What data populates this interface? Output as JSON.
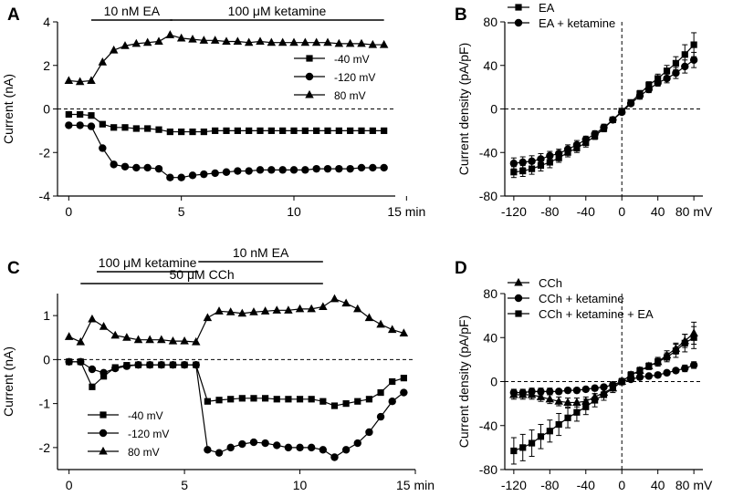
{
  "chart_data": [
    {
      "id": "A",
      "panel_label": "A",
      "type": "line",
      "xlabel": "min",
      "ylabel": "Current (nA)",
      "xlim": [
        -0.5,
        14.5
      ],
      "ylim": [
        -4,
        4
      ],
      "xticks": [
        0,
        5,
        10,
        15
      ],
      "yticks": [
        -4,
        -2,
        0,
        2,
        4
      ],
      "tick_labels_x": [
        "0",
        "5",
        "10",
        "15 min"
      ],
      "tick_labels_y": [
        "-4",
        "-2",
        "0",
        "2",
        "4"
      ],
      "zero_line": true,
      "bars": [
        {
          "label": "10 nM EA",
          "start": 1,
          "end": 4.6,
          "level": 1
        },
        {
          "label": "100 μM ketamine",
          "start": 4.5,
          "end": 14,
          "level": 1
        }
      ],
      "legend": {
        "placement": "right-middle"
      },
      "series": [
        {
          "name": "-40 mV",
          "marker": "square",
          "x": [
            0,
            0.5,
            1,
            1.5,
            2,
            2.5,
            3,
            3.5,
            4,
            4.5,
            5,
            5.5,
            6,
            6.5,
            7,
            7.5,
            8,
            8.5,
            9,
            9.5,
            10,
            10.5,
            11,
            11.5,
            12,
            12.5,
            13,
            13.5,
            14
          ],
          "values": [
            -0.25,
            -0.25,
            -0.3,
            -0.7,
            -0.85,
            -0.85,
            -0.9,
            -0.9,
            -0.95,
            -1.05,
            -1.05,
            -1.05,
            -1.05,
            -1.0,
            -1.0,
            -1.0,
            -1.0,
            -1.0,
            -1.0,
            -1.0,
            -1.0,
            -1.0,
            -1.0,
            -1.0,
            -1.0,
            -1.0,
            -1.0,
            -1.0,
            -1.0
          ]
        },
        {
          "name": "-120 mV",
          "marker": "circle",
          "x": [
            0,
            0.5,
            1,
            1.5,
            2,
            2.5,
            3,
            3.5,
            4,
            4.5,
            5,
            5.5,
            6,
            6.5,
            7,
            7.5,
            8,
            8.5,
            9,
            9.5,
            10,
            10.5,
            11,
            11.5,
            12,
            12.5,
            13,
            13.5,
            14
          ],
          "values": [
            -0.75,
            -0.75,
            -0.8,
            -1.8,
            -2.55,
            -2.65,
            -2.7,
            -2.7,
            -2.75,
            -3.15,
            -3.15,
            -3.05,
            -3.0,
            -2.95,
            -2.9,
            -2.85,
            -2.85,
            -2.8,
            -2.8,
            -2.8,
            -2.8,
            -2.8,
            -2.75,
            -2.75,
            -2.75,
            -2.75,
            -2.7,
            -2.7,
            -2.7
          ]
        },
        {
          "name": "80 mV",
          "marker": "triangle",
          "x": [
            0,
            0.5,
            1,
            1.5,
            2,
            2.5,
            3,
            3.5,
            4,
            4.5,
            5,
            5.5,
            6,
            6.5,
            7,
            7.5,
            8,
            8.5,
            9,
            9.5,
            10,
            10.5,
            11,
            11.5,
            12,
            12.5,
            13,
            13.5,
            14
          ],
          "values": [
            1.3,
            1.25,
            1.3,
            2.15,
            2.7,
            2.9,
            3.0,
            3.05,
            3.1,
            3.4,
            3.25,
            3.2,
            3.15,
            3.15,
            3.1,
            3.1,
            3.05,
            3.1,
            3.05,
            3.05,
            3.05,
            3.05,
            3.05,
            3.05,
            3.0,
            3.0,
            3.0,
            2.95,
            2.95
          ]
        }
      ]
    },
    {
      "id": "B",
      "panel_label": "B",
      "type": "scatter",
      "xlabel": "mV",
      "ylabel": "Current density (pA/pF)",
      "xlim": [
        -130,
        90
      ],
      "ylim": [
        -80,
        80
      ],
      "xticks": [
        -120,
        -80,
        -40,
        0,
        40,
        80
      ],
      "yticks": [
        -80,
        -40,
        0,
        40,
        80
      ],
      "tick_labels_x": [
        "-120",
        "-80",
        "-40",
        "0",
        "40",
        "80 mV"
      ],
      "tick_labels_y": [
        "-80",
        "-40",
        "0",
        "40",
        "80"
      ],
      "zero_line": true,
      "vertical_zero_line": true,
      "legend": {
        "placement": "top-left"
      },
      "series": [
        {
          "name": "EA",
          "marker": "square",
          "x": [
            -120,
            -110,
            -100,
            -90,
            -80,
            -70,
            -60,
            -50,
            -40,
            -30,
            -20,
            -10,
            0,
            10,
            20,
            30,
            40,
            50,
            60,
            70,
            80
          ],
          "values": [
            -58,
            -57,
            -55,
            -52,
            -49,
            -45,
            -40,
            -36,
            -31,
            -25,
            -18,
            -10,
            -2,
            6,
            14,
            22,
            28,
            35,
            42,
            50,
            59
          ],
          "errors": [
            5,
            5,
            5,
            5,
            5,
            4,
            4,
            4,
            4,
            3,
            3,
            2,
            2,
            2,
            3,
            3,
            4,
            5,
            6,
            9,
            11
          ]
        },
        {
          "name": "EA + ketamine",
          "marker": "circle",
          "x": [
            -120,
            -110,
            -100,
            -90,
            -80,
            -70,
            -60,
            -50,
            -40,
            -30,
            -20,
            -10,
            0,
            10,
            20,
            30,
            40,
            50,
            60,
            70,
            80
          ],
          "values": [
            -50,
            -49,
            -48,
            -46,
            -43,
            -41,
            -37,
            -33,
            -28,
            -23,
            -17,
            -10,
            -3,
            5,
            12,
            18,
            24,
            28,
            33,
            39,
            45
          ],
          "errors": [
            5,
            5,
            5,
            5,
            4,
            4,
            4,
            4,
            3,
            3,
            3,
            2,
            2,
            2,
            3,
            3,
            3,
            4,
            5,
            6,
            7
          ]
        }
      ]
    },
    {
      "id": "C",
      "panel_label": "C",
      "type": "line",
      "xlabel": "min",
      "ylabel": "Current (nA)",
      "xlim": [
        -0.5,
        15
      ],
      "ylim": [
        -2.5,
        1.5
      ],
      "xticks": [
        0,
        5,
        10,
        15
      ],
      "yticks": [
        -2,
        -1,
        0,
        1
      ],
      "tick_labels_x": [
        "0",
        "5",
        "10",
        "15 min"
      ],
      "tick_labels_y": [
        "-2",
        "-1",
        "0",
        "1"
      ],
      "zero_line": true,
      "bars": [
        {
          "label": "100 μM ketamine",
          "start": 1.2,
          "end": 5.6,
          "level": 2
        },
        {
          "label": "10 nM EA",
          "start": 5.6,
          "end": 11,
          "level": 1
        },
        {
          "label": "50 μM CCh",
          "start": 0.5,
          "end": 11,
          "level": 3
        }
      ],
      "legend": {
        "placement": "bottom-left"
      },
      "series": [
        {
          "name": "-40 mV",
          "marker": "square",
          "x": [
            0,
            0.5,
            1,
            1.5,
            2,
            2.5,
            3,
            3.5,
            4,
            4.5,
            5,
            5.5,
            6,
            6.5,
            7,
            7.5,
            8,
            8.5,
            9,
            9.5,
            10,
            10.5,
            11,
            11.5,
            12,
            12.5,
            13,
            13.5,
            14,
            14.5
          ],
          "values": [
            -0.05,
            -0.05,
            -0.62,
            -0.38,
            -0.18,
            -0.13,
            -0.12,
            -0.12,
            -0.12,
            -0.12,
            -0.12,
            -0.12,
            -0.95,
            -0.92,
            -0.9,
            -0.88,
            -0.88,
            -0.88,
            -0.9,
            -0.9,
            -0.9,
            -0.9,
            -0.95,
            -1.05,
            -1.0,
            -0.95,
            -0.9,
            -0.75,
            -0.5,
            -0.42
          ]
        },
        {
          "name": "-120 mV",
          "marker": "circle",
          "x": [
            0,
            0.5,
            1,
            1.5,
            2,
            2.5,
            3,
            3.5,
            4,
            4.5,
            5,
            5.5,
            6,
            6.5,
            7,
            7.5,
            8,
            8.5,
            9,
            9.5,
            10,
            10.5,
            11,
            11.5,
            12,
            12.5,
            13,
            13.5,
            14,
            14.5
          ],
          "values": [
            -0.05,
            -0.05,
            -0.22,
            -0.3,
            -0.2,
            -0.15,
            -0.12,
            -0.12,
            -0.12,
            -0.12,
            -0.12,
            -0.12,
            -2.05,
            -2.12,
            -2.0,
            -1.92,
            -1.88,
            -1.9,
            -1.95,
            -2.0,
            -2.0,
            -2.0,
            -2.05,
            -2.22,
            -2.05,
            -1.9,
            -1.65,
            -1.3,
            -0.95,
            -0.75
          ]
        },
        {
          "name": "80 mV",
          "marker": "triangle",
          "x": [
            0,
            0.5,
            1,
            1.5,
            2,
            2.5,
            3,
            3.5,
            4,
            4.5,
            5,
            5.5,
            6,
            6.5,
            7,
            7.5,
            8,
            8.5,
            9,
            9.5,
            10,
            10.5,
            11,
            11.5,
            12,
            12.5,
            13,
            13.5,
            14,
            14.5
          ],
          "values": [
            0.52,
            0.4,
            0.92,
            0.75,
            0.55,
            0.5,
            0.45,
            0.45,
            0.45,
            0.42,
            0.42,
            0.4,
            0.95,
            1.1,
            1.08,
            1.05,
            1.08,
            1.1,
            1.12,
            1.12,
            1.15,
            1.15,
            1.2,
            1.38,
            1.28,
            1.15,
            0.95,
            0.8,
            0.68,
            0.6
          ]
        }
      ]
    },
    {
      "id": "D",
      "panel_label": "D",
      "type": "scatter",
      "xlabel": "mV",
      "ylabel": "Current density (pA/pF)",
      "xlim": [
        -130,
        90
      ],
      "ylim": [
        -80,
        80
      ],
      "xticks": [
        -120,
        -80,
        -40,
        0,
        40,
        80
      ],
      "yticks": [
        -80,
        -40,
        0,
        40,
        80
      ],
      "tick_labels_x": [
        "-120",
        "-80",
        "-40",
        "0",
        "40",
        "80 mV"
      ],
      "tick_labels_y": [
        "-80",
        "-40",
        "0",
        "40",
        "80"
      ],
      "zero_line": true,
      "vertical_zero_line": true,
      "legend": {
        "placement": "top-left"
      },
      "series": [
        {
          "name": "CCh",
          "marker": "triangle",
          "x": [
            -120,
            -110,
            -100,
            -90,
            -80,
            -70,
            -60,
            -50,
            -40,
            -30,
            -20,
            -10,
            0,
            10,
            20,
            30,
            40,
            50,
            60,
            70,
            80
          ],
          "values": [
            -12,
            -12,
            -12,
            -14,
            -16,
            -18,
            -19,
            -19,
            -18,
            -14,
            -10,
            -6,
            0,
            6,
            10,
            14,
            18,
            24,
            30,
            37,
            44
          ],
          "errors": [
            4,
            4,
            4,
            4,
            4,
            4,
            4,
            4,
            4,
            3,
            3,
            2,
            2,
            2,
            2,
            3,
            3,
            4,
            5,
            6,
            10
          ]
        },
        {
          "name": "CCh + ketamine",
          "marker": "circle",
          "x": [
            -120,
            -110,
            -100,
            -90,
            -80,
            -70,
            -60,
            -50,
            -40,
            -30,
            -20,
            -10,
            0,
            10,
            20,
            30,
            40,
            50,
            60,
            70,
            80
          ],
          "values": [
            -10,
            -10,
            -9,
            -9,
            -9,
            -9,
            -8,
            -8,
            -7,
            -6,
            -5,
            -3,
            0,
            2,
            4,
            5,
            6,
            8,
            10,
            12,
            15
          ],
          "errors": [
            3,
            3,
            3,
            3,
            3,
            2,
            2,
            2,
            2,
            2,
            2,
            2,
            1,
            1,
            1,
            2,
            2,
            2,
            2,
            3,
            3
          ]
        },
        {
          "name": "CCh + ketamine + EA",
          "marker": "square",
          "x": [
            -120,
            -110,
            -100,
            -90,
            -80,
            -70,
            -60,
            -50,
            -40,
            -30,
            -20,
            -10,
            0,
            10,
            20,
            30,
            40,
            50,
            60,
            70,
            80
          ],
          "values": [
            -63,
            -60,
            -56,
            -50,
            -45,
            -39,
            -33,
            -28,
            -23,
            -17,
            -12,
            -6,
            0,
            6,
            10,
            14,
            18,
            22,
            28,
            35,
            40
          ],
          "errors": [
            12,
            12,
            12,
            11,
            10,
            10,
            9,
            8,
            7,
            6,
            5,
            4,
            3,
            3,
            3,
            3,
            4,
            4,
            6,
            8,
            10
          ]
        }
      ]
    }
  ]
}
